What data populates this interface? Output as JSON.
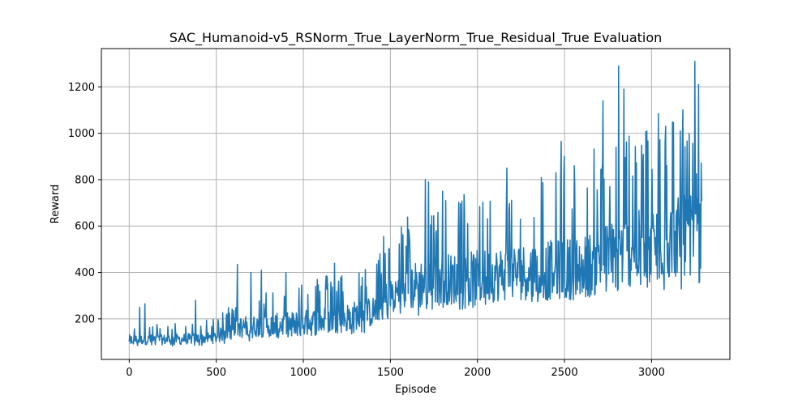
{
  "chart_data": {
    "type": "line",
    "title": "SAC_Humanoid-v5_RSNorm_True_LayerNorm_True_Residual_True Evaluation",
    "xlabel": "Episode",
    "ylabel": "Reward",
    "xlim": [
      -160,
      3450
    ],
    "ylim": [
      25,
      1365
    ],
    "xticks": [
      0,
      500,
      1000,
      1500,
      2000,
      2500,
      3000
    ],
    "yticks": [
      200,
      400,
      600,
      800,
      1000,
      1200
    ],
    "grid": true,
    "color": "#1f77b4",
    "series": [
      {
        "name": "",
        "trend_x": [
          0,
          200,
          400,
          500,
          600,
          800,
          1000,
          1200,
          1400,
          1500,
          1600,
          1700,
          1800,
          2000,
          2200,
          2400,
          2600,
          2800,
          3000,
          3200,
          3290
        ],
        "trend_y": [
          110,
          110,
          115,
          120,
          165,
          170,
          180,
          200,
          230,
          300,
          330,
          360,
          370,
          380,
          400,
          410,
          420,
          480,
          520,
          560,
          570
        ],
        "trend_min": [
          80,
          80,
          85,
          85,
          100,
          110,
          120,
          130,
          140,
          190,
          200,
          210,
          230,
          250,
          260,
          270,
          280,
          300,
          310,
          320,
          330
        ],
        "trend_max": [
          170,
          180,
          190,
          200,
          290,
          330,
          380,
          400,
          430,
          560,
          650,
          720,
          720,
          760,
          800,
          840,
          900,
          1000,
          1050,
          1100,
          1000
        ],
        "spikes": [
          {
            "x": 60,
            "y": 250
          },
          {
            "x": 90,
            "y": 265
          },
          {
            "x": 380,
            "y": 280
          },
          {
            "x": 620,
            "y": 435
          },
          {
            "x": 700,
            "y": 400
          },
          {
            "x": 760,
            "y": 410
          },
          {
            "x": 900,
            "y": 400
          },
          {
            "x": 1180,
            "y": 440
          },
          {
            "x": 1440,
            "y": 480
          },
          {
            "x": 1460,
            "y": 555
          },
          {
            "x": 1700,
            "y": 800
          },
          {
            "x": 1720,
            "y": 790
          },
          {
            "x": 1800,
            "y": 750
          },
          {
            "x": 2170,
            "y": 850
          },
          {
            "x": 2450,
            "y": 830
          },
          {
            "x": 2480,
            "y": 965
          },
          {
            "x": 2500,
            "y": 900
          },
          {
            "x": 2720,
            "y": 1140
          },
          {
            "x": 2810,
            "y": 1290
          },
          {
            "x": 2840,
            "y": 1190
          },
          {
            "x": 3040,
            "y": 1085
          },
          {
            "x": 3080,
            "y": 1030
          },
          {
            "x": 3180,
            "y": 1100
          },
          {
            "x": 3250,
            "y": 1310
          },
          {
            "x": 3270,
            "y": 1210
          },
          {
            "x": 3290,
            "y": 985
          }
        ]
      }
    ]
  }
}
